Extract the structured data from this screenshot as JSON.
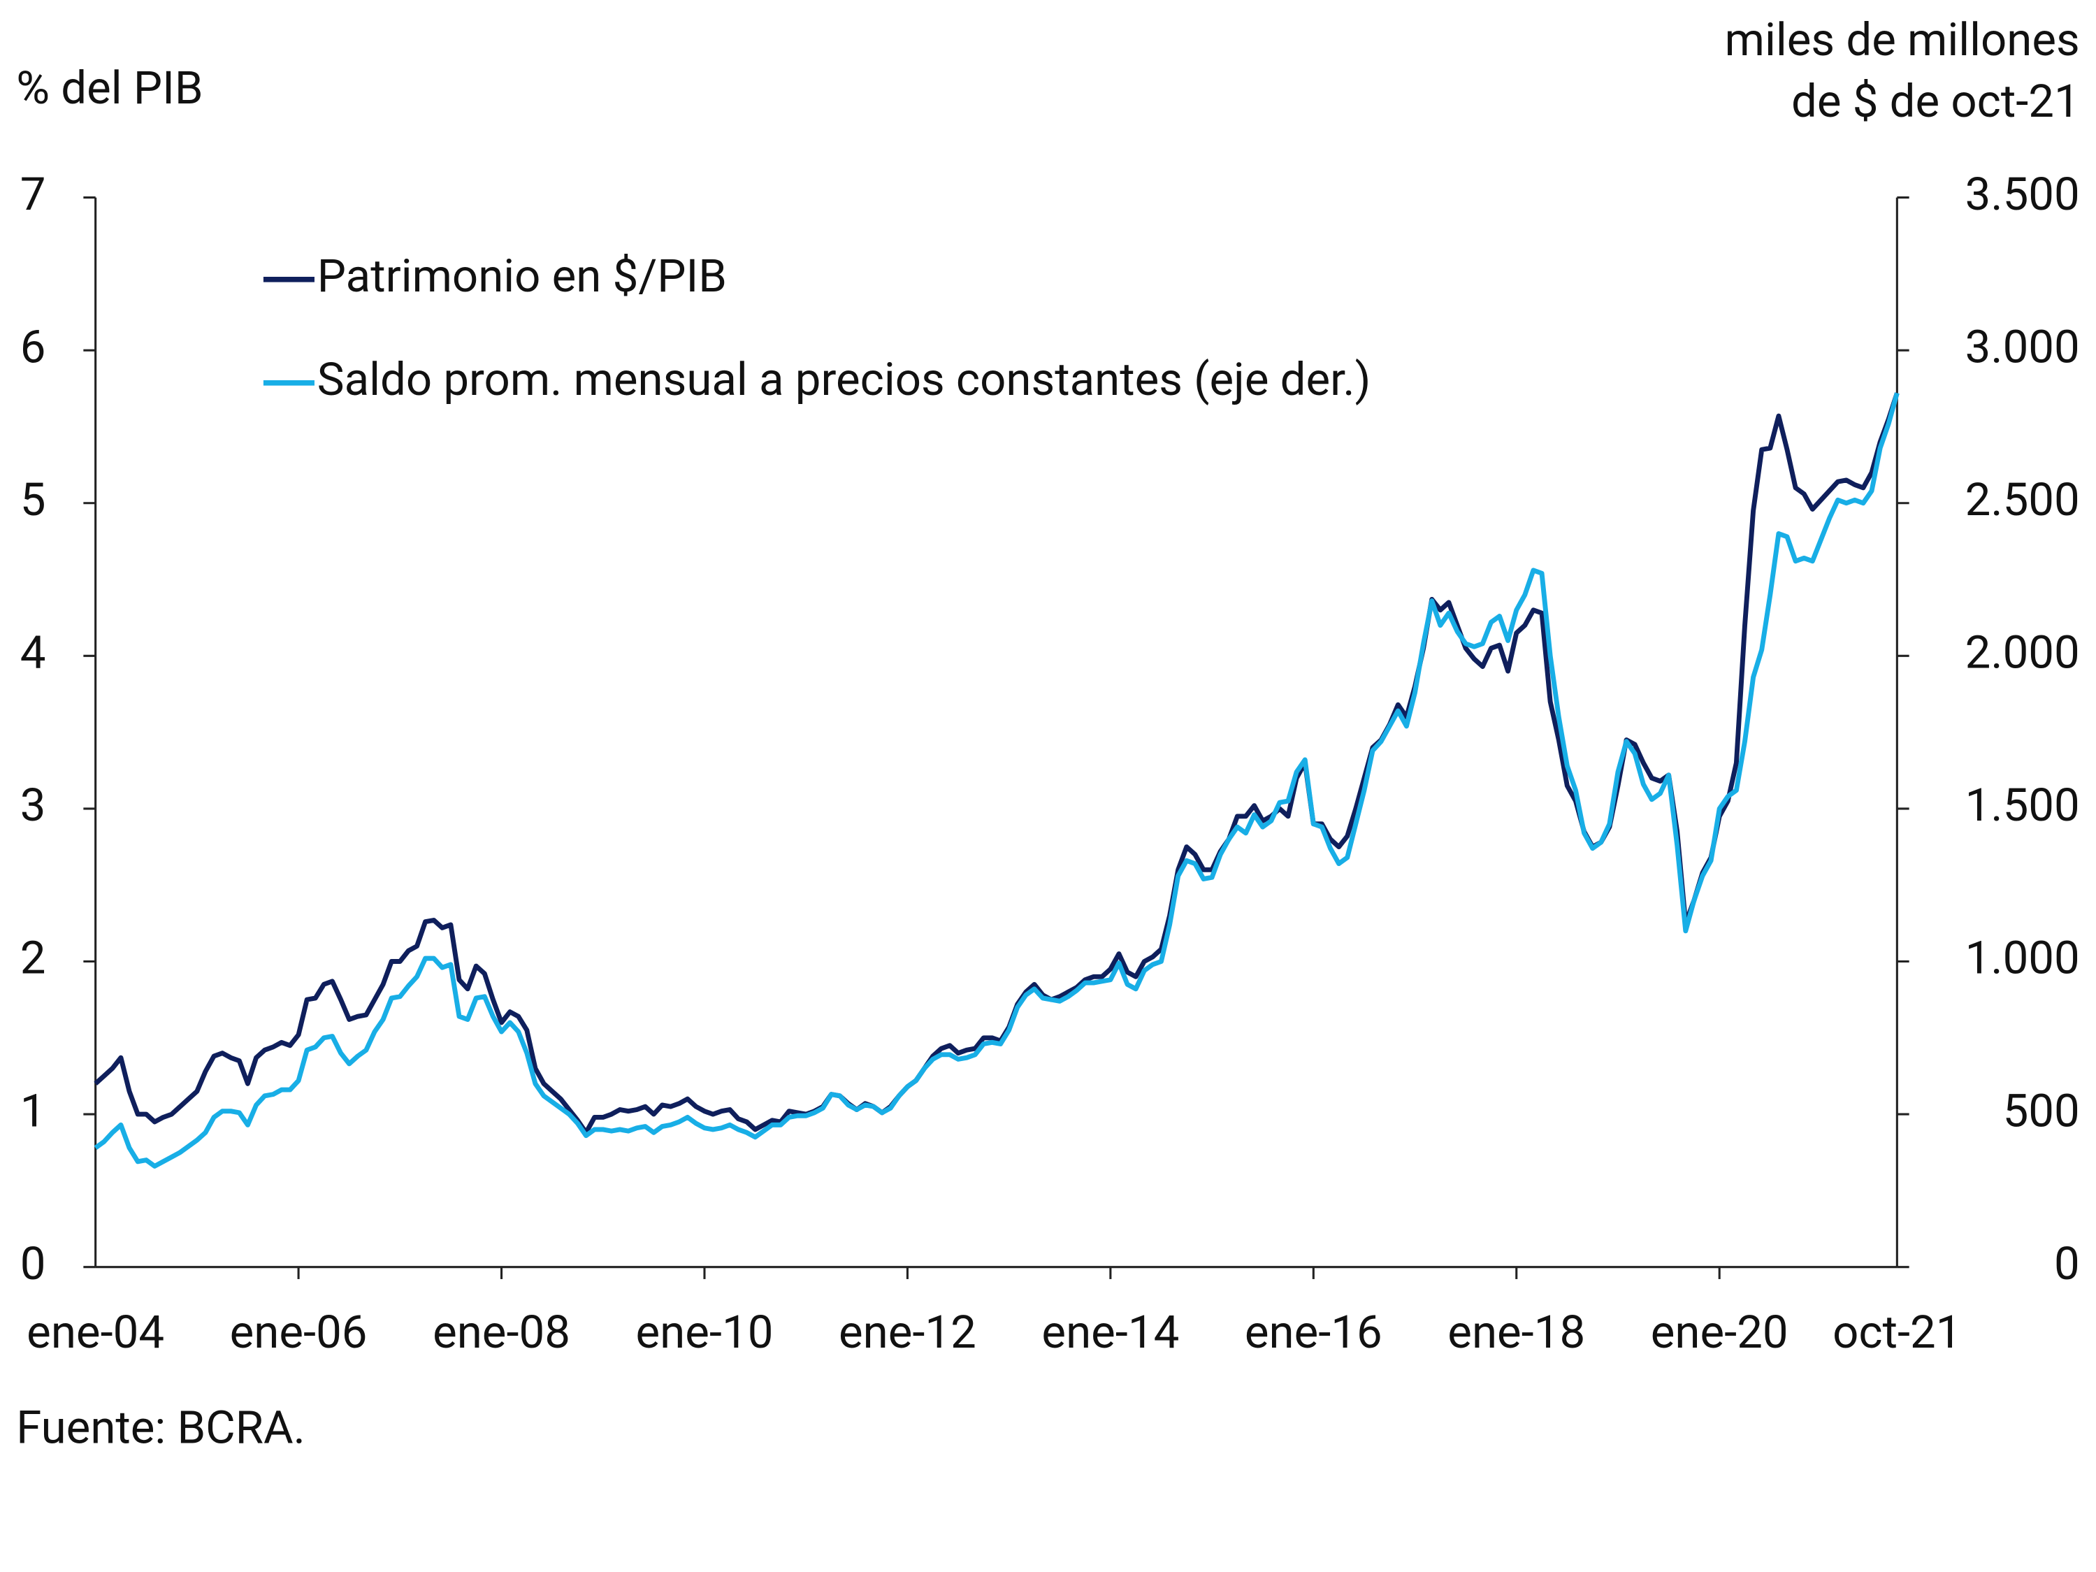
{
  "chart_data": {
    "type": "line",
    "ylabel": "% del PIB",
    "y2label": [
      "miles de millones",
      "de $ de oct-21"
    ],
    "source": "Fuente: BCRA.",
    "categories": [
      "ene-04",
      null,
      null,
      null,
      null,
      null,
      null,
      null,
      null,
      null,
      null,
      null,
      null,
      null,
      null,
      null,
      null,
      null,
      null,
      null,
      null,
      null,
      null,
      null,
      "ene-06",
      null,
      null,
      null,
      null,
      null,
      null,
      null,
      null,
      null,
      null,
      null,
      null,
      null,
      null,
      null,
      null,
      null,
      null,
      null,
      null,
      null,
      null,
      null,
      "ene-08",
      null,
      null,
      null,
      null,
      null,
      null,
      null,
      null,
      null,
      null,
      null,
      null,
      null,
      null,
      null,
      null,
      null,
      null,
      null,
      null,
      null,
      null,
      null,
      "ene-10",
      null,
      null,
      null,
      null,
      null,
      null,
      null,
      null,
      null,
      null,
      null,
      null,
      null,
      null,
      null,
      null,
      null,
      null,
      null,
      null,
      null,
      null,
      null,
      "ene-12",
      null,
      null,
      null,
      null,
      null,
      null,
      null,
      null,
      null,
      null,
      null,
      null,
      null,
      null,
      null,
      null,
      null,
      null,
      null,
      null,
      null,
      null,
      null,
      "ene-14",
      null,
      null,
      null,
      null,
      null,
      null,
      null,
      null,
      null,
      null,
      null,
      null,
      null,
      null,
      null,
      null,
      null,
      null,
      null,
      null,
      null,
      null,
      null,
      "ene-16",
      null,
      null,
      null,
      null,
      null,
      null,
      null,
      null,
      null,
      null,
      null,
      null,
      null,
      null,
      null,
      null,
      null,
      null,
      null,
      null,
      null,
      null,
      null,
      "ene-18",
      null,
      null,
      null,
      null,
      null,
      null,
      null,
      null,
      null,
      null,
      null,
      null,
      null,
      null,
      null,
      null,
      null,
      null,
      null,
      null,
      null,
      null,
      null,
      "ene-20",
      null,
      null,
      null,
      null,
      null,
      null,
      null,
      null,
      null,
      null,
      null,
      null,
      null,
      null,
      null,
      null,
      null,
      null,
      null,
      null,
      "oct-21"
    ],
    "series": [
      {
        "name": "Patrimonio en $/PIB",
        "color": "#0f1f5c",
        "axis": "y",
        "values": [
          1.2,
          1.25,
          1.3,
          1.37,
          1.15,
          1.0,
          1.0,
          0.95,
          0.98,
          1.0,
          1.05,
          1.1,
          1.15,
          1.28,
          1.38,
          1.4,
          1.37,
          1.35,
          1.2,
          1.37,
          1.42,
          1.44,
          1.47,
          1.45,
          1.52,
          1.75,
          1.76,
          1.85,
          1.87,
          1.75,
          1.62,
          1.64,
          1.65,
          1.75,
          1.85,
          2.0,
          2.0,
          2.07,
          2.1,
          2.26,
          2.27,
          2.22,
          2.24,
          1.88,
          1.82,
          1.97,
          1.92,
          1.75,
          1.6,
          1.67,
          1.64,
          1.55,
          1.3,
          1.2,
          1.15,
          1.1,
          1.03,
          0.96,
          0.88,
          0.98,
          0.98,
          1.0,
          1.03,
          1.02,
          1.03,
          1.05,
          1.0,
          1.06,
          1.05,
          1.07,
          1.1,
          1.05,
          1.02,
          1.0,
          1.02,
          1.03,
          0.97,
          0.95,
          0.9,
          0.93,
          0.96,
          0.95,
          1.02,
          1.01,
          1.0,
          1.02,
          1.05,
          1.13,
          1.12,
          1.07,
          1.03,
          1.07,
          1.05,
          1.01,
          1.05,
          1.12,
          1.18,
          1.22,
          1.3,
          1.38,
          1.43,
          1.45,
          1.4,
          1.42,
          1.43,
          1.5,
          1.5,
          1.48,
          1.57,
          1.72,
          1.8,
          1.85,
          1.78,
          1.75,
          1.77,
          1.8,
          1.83,
          1.88,
          1.9,
          1.9,
          1.95,
          2.05,
          1.93,
          1.9,
          2.0,
          2.03,
          2.08,
          2.3,
          2.6,
          2.75,
          2.7,
          2.6,
          2.6,
          2.72,
          2.8,
          2.95,
          2.95,
          3.02,
          2.92,
          2.95,
          3.0,
          2.95,
          3.2,
          3.3,
          2.9,
          2.9,
          2.8,
          2.75,
          2.82,
          3.0,
          3.2,
          3.4,
          3.45,
          3.55,
          3.68,
          3.6,
          3.8,
          4.05,
          4.37,
          4.3,
          4.35,
          4.2,
          4.05,
          3.98,
          3.93,
          4.05,
          4.07,
          3.9,
          4.15,
          4.2,
          4.3,
          4.28,
          3.7,
          3.45,
          3.15,
          3.05,
          2.85,
          2.75,
          2.78,
          2.88,
          3.15,
          3.45,
          3.42,
          3.3,
          3.2,
          3.18,
          3.22,
          2.85,
          2.25,
          2.4,
          2.58,
          2.68,
          2.95,
          3.05,
          3.3,
          4.2,
          4.95,
          5.35,
          5.36,
          5.57,
          5.35,
          5.1,
          5.06,
          4.96,
          5.02,
          5.08,
          5.14,
          5.15,
          5.12,
          5.1,
          5.2,
          5.4,
          5.55,
          5.72
        ]
      },
      {
        "name": "Saldo prom. mensual a precios constantes (eje der.)",
        "color": "#18aee6",
        "axis": "y2",
        "values": [
          390,
          410,
          440,
          465,
          390,
          345,
          350,
          330,
          345,
          360,
          375,
          395,
          415,
          440,
          490,
          510,
          510,
          505,
          465,
          530,
          560,
          565,
          580,
          580,
          610,
          710,
          720,
          750,
          755,
          700,
          665,
          690,
          710,
          770,
          810,
          880,
          885,
          920,
          950,
          1010,
          1010,
          980,
          990,
          820,
          810,
          880,
          885,
          820,
          770,
          800,
          770,
          700,
          600,
          560,
          540,
          520,
          500,
          470,
          430,
          450,
          450,
          445,
          450,
          445,
          455,
          460,
          440,
          460,
          465,
          475,
          490,
          470,
          455,
          450,
          455,
          465,
          450,
          440,
          425,
          445,
          465,
          465,
          490,
          495,
          495,
          505,
          520,
          565,
          560,
          530,
          515,
          530,
          525,
          505,
          520,
          560,
          590,
          610,
          650,
          680,
          695,
          695,
          680,
          685,
          695,
          730,
          735,
          730,
          775,
          850,
          890,
          910,
          880,
          875,
          870,
          885,
          905,
          930,
          930,
          935,
          940,
          995,
          925,
          910,
          970,
          990,
          1000,
          1120,
          1280,
          1330,
          1320,
          1270,
          1275,
          1350,
          1400,
          1440,
          1420,
          1480,
          1440,
          1460,
          1520,
          1525,
          1620,
          1660,
          1450,
          1440,
          1370,
          1320,
          1340,
          1450,
          1560,
          1690,
          1720,
          1770,
          1820,
          1770,
          1880,
          2040,
          2180,
          2100,
          2140,
          2080,
          2040,
          2030,
          2040,
          2110,
          2130,
          2050,
          2150,
          2200,
          2280,
          2270,
          2000,
          1800,
          1640,
          1560,
          1420,
          1370,
          1390,
          1450,
          1620,
          1720,
          1680,
          1580,
          1530,
          1550,
          1610,
          1380,
          1100,
          1200,
          1280,
          1330,
          1500,
          1540,
          1560,
          1720,
          1930,
          2020,
          2200,
          2400,
          2390,
          2310,
          2320,
          2310,
          2380,
          2450,
          2510,
          2500,
          2510,
          2500,
          2540,
          2680,
          2760,
          2860
        ]
      }
    ],
    "ylim": [
      0,
      7
    ],
    "yticks": [
      0,
      1,
      2,
      3,
      4,
      5,
      6,
      7
    ],
    "y2lim": [
      0,
      3500
    ],
    "y2ticks": [
      0,
      500,
      {
        "value": 1000,
        "label": "1.000"
      },
      {
        "value": 1500,
        "label": "1.500"
      },
      {
        "value": 2000,
        "label": "2.000"
      },
      {
        "value": 2500,
        "label": "2.500"
      },
      {
        "value": 3000,
        "label": "3.000"
      },
      {
        "value": 3500,
        "label": "3.500"
      }
    ],
    "legend": "top-left",
    "grid": false
  }
}
